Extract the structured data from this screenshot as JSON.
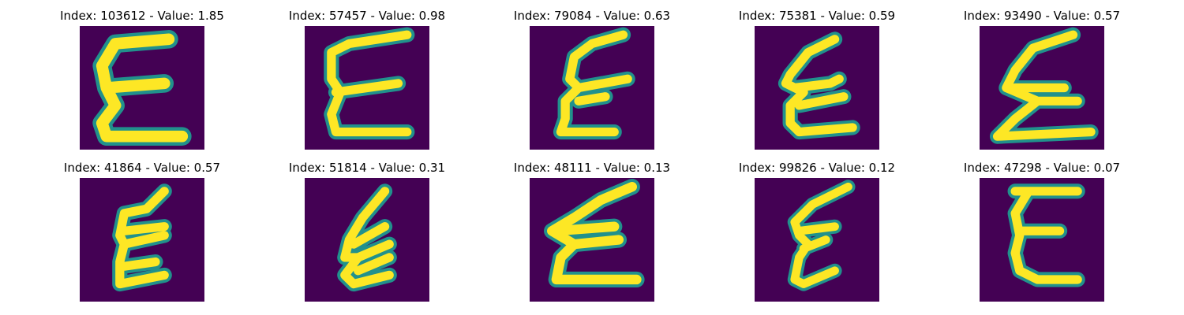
{
  "panels": [
    {
      "title": "Index: 103612 - Value: 1.85"
    },
    {
      "title": "Index: 57457 - Value: 0.98"
    },
    {
      "title": "Index: 79084 - Value: 0.63"
    },
    {
      "title": "Index: 75381 - Value: 0.59"
    },
    {
      "title": "Index: 93490 - Value: 0.57"
    },
    {
      "title": "Index: 41864 - Value: 0.57"
    },
    {
      "title": "Index: 51814 - Value: 0.31"
    },
    {
      "title": "Index: 48111 - Value: 0.13"
    },
    {
      "title": "Index: 99826 - Value: 0.12"
    },
    {
      "title": "Index: 47298 - Value: 0.07"
    }
  ],
  "colors": {
    "background": "#440154",
    "stroke_outer": "#21918c",
    "stroke_inner": "#fde725"
  }
}
